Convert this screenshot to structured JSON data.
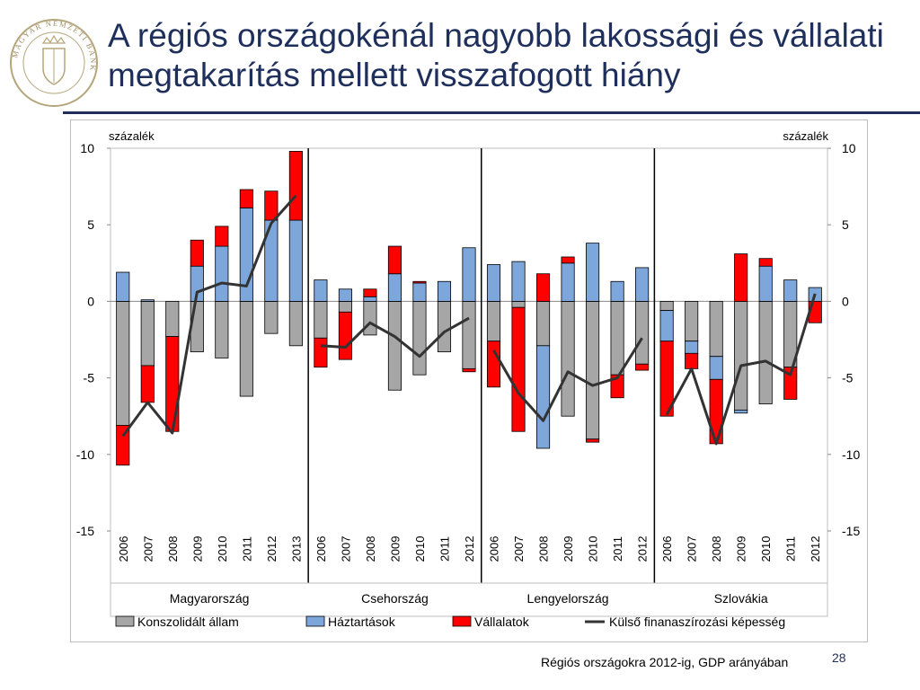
{
  "slide": {
    "title": "A régiós országokénál nagyobb lakossági és vállalati megtakarítás mellett visszafogott hiány",
    "footnote": "Régiós országokra 2012-ig, GDP arányában",
    "page_number": "28",
    "logo_text": "MAGYAR NEMZETI BANK"
  },
  "colors": {
    "title": "#1f2f5c",
    "allam": "#a6a6a6",
    "haztartasok": "#7da6db",
    "vallalatok": "#ff0000",
    "kulso": "#333333"
  },
  "chart_data": {
    "type": "bar",
    "stacked": true,
    "unit_left": "százalék",
    "unit_right": "százalék",
    "ylim": [
      -15,
      10
    ],
    "yticks": [
      "10",
      "5",
      "0",
      "-5",
      "-10",
      "-15"
    ],
    "grid": false,
    "legend_position": "bottom",
    "groups": [
      {
        "name": "Magyarország",
        "years": [
          "2006",
          "2007",
          "2008",
          "2009",
          "2010",
          "2011",
          "2012",
          "2013"
        ]
      },
      {
        "name": "Csehország",
        "years": [
          "2006",
          "2007",
          "2008",
          "2009",
          "2010",
          "2011",
          "2012"
        ]
      },
      {
        "name": "Lengyelország",
        "years": [
          "2006",
          "2007",
          "2008",
          "2009",
          "2010",
          "2011",
          "2012"
        ]
      },
      {
        "name": "Szlovákia",
        "years": [
          "2006",
          "2007",
          "2008",
          "2009",
          "2010",
          "2011",
          "2012"
        ]
      }
    ],
    "series": [
      {
        "name": "Konszolidált állam",
        "values": [
          -8.1,
          -4.2,
          -2.3,
          -3.3,
          -3.7,
          -6.2,
          -2.1,
          -2.9,
          -2.4,
          -0.7,
          -2.2,
          -5.8,
          -4.8,
          -3.3,
          -4.4,
          -2.6,
          -0.4,
          -2.9,
          -7.5,
          -9.0,
          -4.8,
          -4.1,
          -0.6,
          -2.6,
          -3.6,
          -7.1,
          -6.7,
          -4.3,
          -0.0
        ]
      },
      {
        "name": "Háztartások",
        "values": [
          1.9,
          0.1,
          0.0,
          2.3,
          3.6,
          6.1,
          5.3,
          5.3,
          1.4,
          0.8,
          0.3,
          1.8,
          1.2,
          1.3,
          3.5,
          2.4,
          2.6,
          -6.7,
          2.5,
          3.8,
          1.3,
          2.2,
          -2.0,
          -0.8,
          -1.5,
          -0.2,
          2.3,
          1.4,
          0.9
        ]
      },
      {
        "name": "Vállalatok",
        "values": [
          -2.6,
          -2.4,
          -6.2,
          1.7,
          1.3,
          1.2,
          1.9,
          4.5,
          -1.9,
          -3.1,
          0.5,
          1.8,
          0.1,
          0.0,
          -0.2,
          -3.0,
          -8.1,
          1.8,
          0.4,
          -0.2,
          -1.5,
          -0.4,
          -4.9,
          -1.0,
          -4.2,
          3.1,
          0.5,
          -2.1,
          -1.4
        ]
      },
      {
        "name": "Külső finanaszírozási  képesség",
        "type": "line",
        "values": [
          -8.8,
          -6.6,
          -8.6,
          0.6,
          1.2,
          1.0,
          5.1,
          6.9,
          -2.9,
          -3.0,
          -1.4,
          -2.3,
          -3.6,
          -2.0,
          -1.1,
          -3.2,
          -6.0,
          -7.8,
          -4.6,
          -5.5,
          -5.0,
          -2.4,
          -7.4,
          -4.4,
          -9.3,
          -4.2,
          -3.9,
          -4.8,
          0.5
        ]
      }
    ]
  }
}
